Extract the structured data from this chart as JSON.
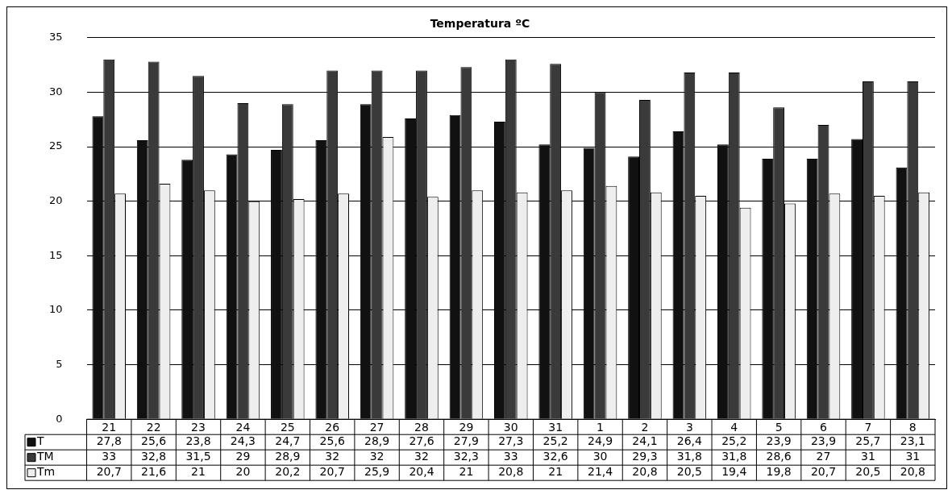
{
  "chart_data": {
    "type": "bar",
    "title": "Temperatura ºC",
    "categories": [
      "21",
      "22",
      "23",
      "24",
      "25",
      "26",
      "27",
      "28",
      "29",
      "30",
      "31",
      "1",
      "2",
      "3",
      "4",
      "5",
      "6",
      "7",
      "8"
    ],
    "series": [
      {
        "name": "T",
        "color": "#111111",
        "values": [
          27.8,
          25.6,
          23.8,
          24.3,
          24.7,
          25.6,
          28.9,
          27.6,
          27.9,
          27.3,
          25.2,
          24.9,
          24.1,
          26.4,
          25.2,
          23.9,
          23.9,
          25.7,
          23.1
        ],
        "value_labels": [
          "27,8",
          "25,6",
          "23,8",
          "24,3",
          "24,7",
          "25,6",
          "28,9",
          "27,6",
          "27,9",
          "27,3",
          "25,2",
          "24,9",
          "24,1",
          "26,4",
          "25,2",
          "23,9",
          "23,9",
          "25,7",
          "23,1"
        ]
      },
      {
        "name": "TM",
        "color": "#3a3a3a",
        "values": [
          33,
          32.8,
          31.5,
          29,
          28.9,
          32,
          32,
          32,
          32.3,
          33,
          32.6,
          30,
          29.3,
          31.8,
          31.8,
          28.6,
          27,
          31,
          31
        ],
        "value_labels": [
          "33",
          "32,8",
          "31,5",
          "29",
          "28,9",
          "32",
          "32",
          "32",
          "32,3",
          "33",
          "32,6",
          "30",
          "29,3",
          "31,8",
          "31,8",
          "28,6",
          "27",
          "31",
          "31"
        ]
      },
      {
        "name": "Tm",
        "color": "#eeeeee",
        "values": [
          20.7,
          21.6,
          21,
          20,
          20.2,
          20.7,
          25.9,
          20.4,
          21,
          20.8,
          21,
          21.4,
          20.8,
          20.5,
          19.4,
          19.8,
          20.7,
          20.5,
          20.8
        ],
        "value_labels": [
          "20,7",
          "21,6",
          "21",
          "20",
          "20,2",
          "20,7",
          "25,9",
          "20,4",
          "21",
          "20,8",
          "21",
          "21,4",
          "20,8",
          "20,5",
          "19,4",
          "19,8",
          "20,7",
          "20,5",
          "20,8"
        ]
      }
    ],
    "ylim": [
      0,
      35
    ],
    "yticks": [
      0,
      5,
      10,
      15,
      20,
      25,
      30,
      35
    ],
    "grid": "y",
    "legend": "bottom left"
  }
}
